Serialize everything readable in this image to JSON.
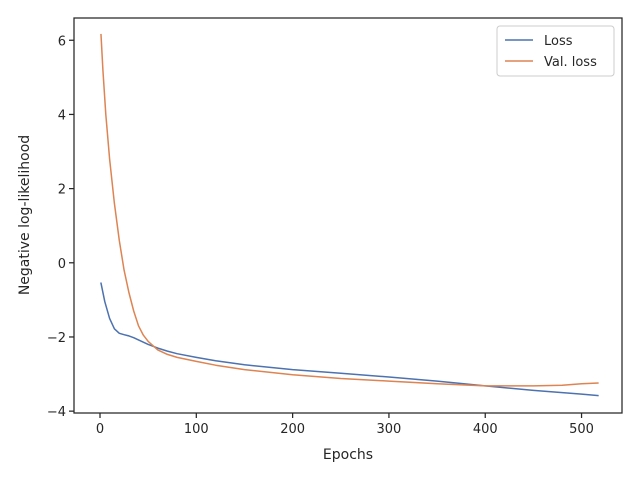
{
  "chart_data": {
    "type": "line",
    "title": "",
    "xlabel": "Epochs",
    "ylabel": "Negative log-likelihood",
    "xlim": [
      -27,
      542
    ],
    "ylim": [
      -4.05,
      6.6
    ],
    "xticks": [
      0,
      100,
      200,
      300,
      400,
      500
    ],
    "xtick_labels": [
      "0",
      "100",
      "200",
      "300",
      "400",
      "500"
    ],
    "yticks": [
      -4,
      -2,
      0,
      2,
      4,
      6
    ],
    "ytick_labels": [
      "−4",
      "−2",
      "0",
      "2",
      "4",
      "6"
    ],
    "grid": false,
    "legend_position": "top-right",
    "series": [
      {
        "name": "Loss",
        "color": "#4c72b0",
        "x": [
          1,
          5,
          10,
          15,
          20,
          25,
          30,
          35,
          40,
          50,
          60,
          70,
          80,
          100,
          120,
          150,
          200,
          250,
          300,
          350,
          400,
          450,
          500,
          517
        ],
        "y": [
          -0.55,
          -1.05,
          -1.5,
          -1.78,
          -1.9,
          -1.94,
          -1.97,
          -2.02,
          -2.08,
          -2.2,
          -2.3,
          -2.38,
          -2.45,
          -2.55,
          -2.64,
          -2.75,
          -2.88,
          -2.98,
          -3.08,
          -3.19,
          -3.32,
          -3.44,
          -3.54,
          -3.58
        ]
      },
      {
        "name": "Val. loss",
        "color": "#dd8452",
        "x": [
          1,
          3,
          6,
          10,
          15,
          20,
          25,
          30,
          35,
          40,
          45,
          50,
          60,
          70,
          80,
          100,
          120,
          150,
          200,
          250,
          300,
          350,
          400,
          450,
          480,
          500,
          517
        ],
        "y": [
          6.15,
          5.2,
          4.0,
          2.8,
          1.6,
          0.6,
          -0.2,
          -0.8,
          -1.3,
          -1.7,
          -1.95,
          -2.12,
          -2.35,
          -2.47,
          -2.55,
          -2.66,
          -2.76,
          -2.88,
          -3.02,
          -3.12,
          -3.19,
          -3.26,
          -3.32,
          -3.32,
          -3.3,
          -3.26,
          -3.24
        ]
      }
    ]
  }
}
